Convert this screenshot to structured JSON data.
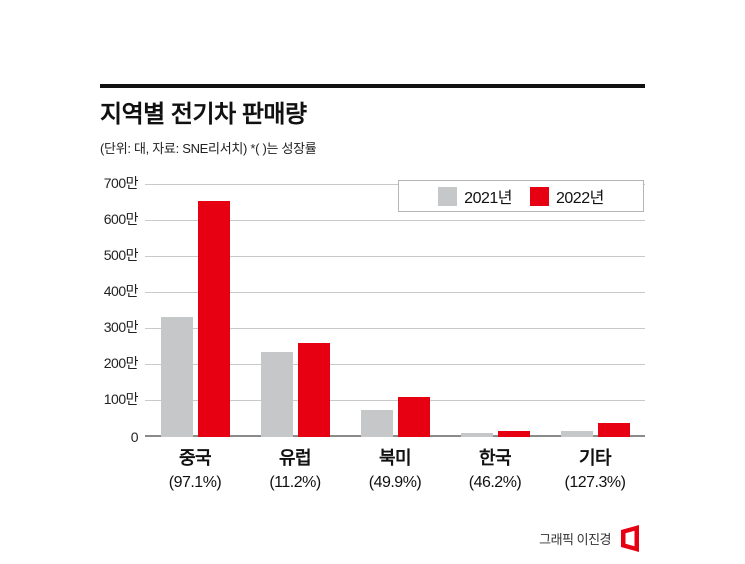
{
  "header": {
    "title": "지역별 전기차 판매량",
    "subtitle": "(단위: 대, 자료: SNE리서치) *( )는 성장률"
  },
  "legend": [
    {
      "label": "2021년",
      "color": "#c6c7c9"
    },
    {
      "label": "2022년",
      "color": "#e60012"
    }
  ],
  "chart_data": {
    "type": "bar",
    "title": "지역별 전기차 판매량",
    "categories": [
      "중국",
      "유럽",
      "북미",
      "한국",
      "기타"
    ],
    "growth_labels": [
      "(97.1%)",
      "(11.2%)",
      "(49.9%)",
      "(46.2%)",
      "(127.3%)"
    ],
    "series": [
      {
        "name": "2021년",
        "color": "#c6c7c9",
        "values": [
          333,
          235,
          74,
          12,
          17
        ]
      },
      {
        "name": "2022년",
        "color": "#e60012",
        "values": [
          656,
          261,
          111,
          17,
          39
        ]
      }
    ],
    "unit_note": "단위: 만 대",
    "yticks": [
      "0",
      "100만",
      "200만",
      "300만",
      "400만",
      "500만",
      "600만",
      "700만"
    ],
    "ymax": 700,
    "legend_position": "top-right",
    "grid": true
  },
  "footer": {
    "credit": "그래픽 이진경"
  },
  "colors": {
    "accent_red": "#e60012",
    "bar_gray": "#c6c7c9"
  }
}
